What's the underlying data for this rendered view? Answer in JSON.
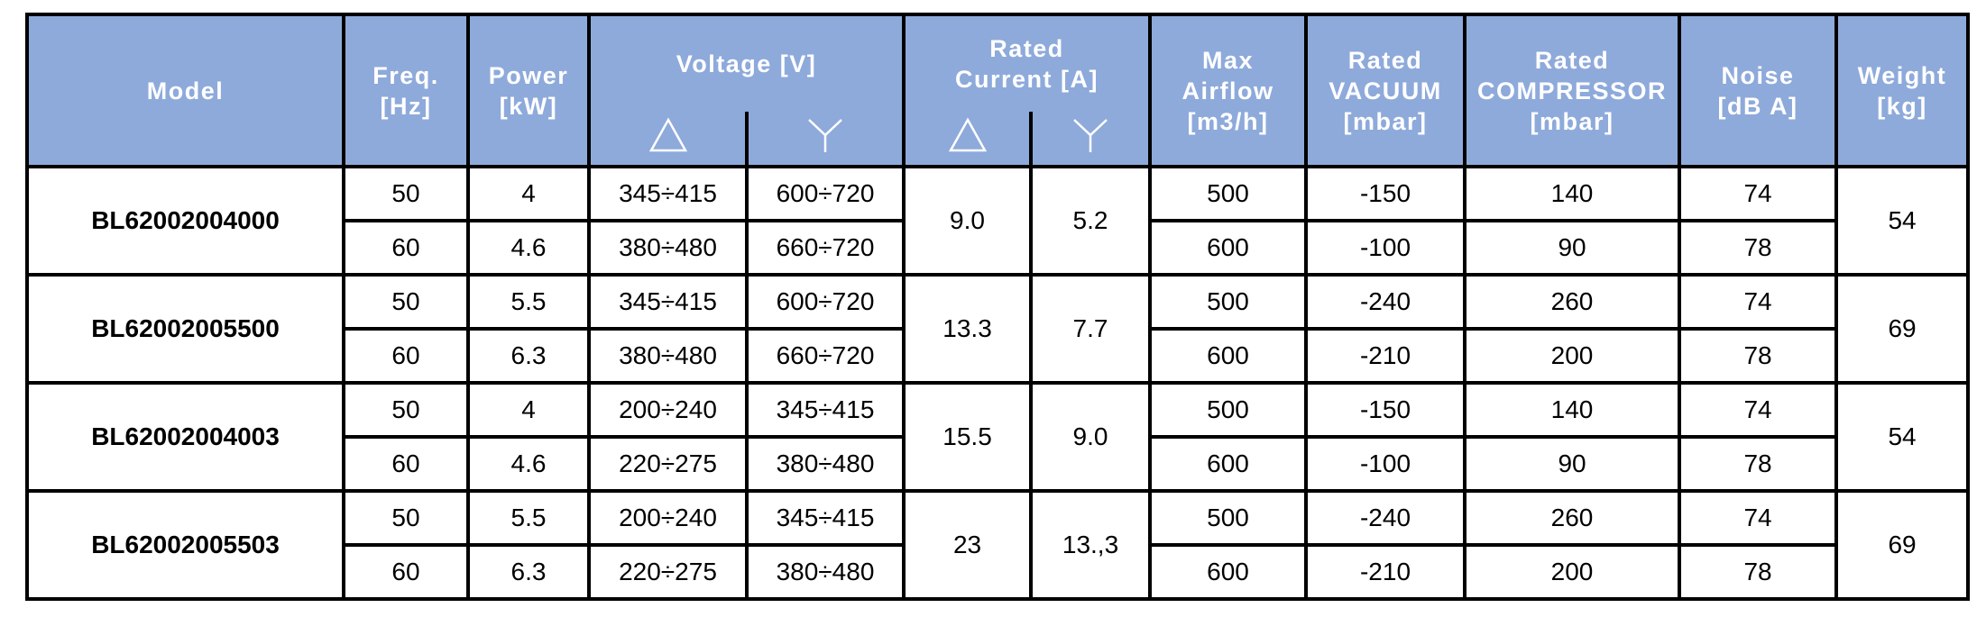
{
  "header": {
    "model": "Model",
    "freq": [
      "Freq.",
      "[Hz]"
    ],
    "power": [
      "Power",
      "[kW]"
    ],
    "voltage": "Voltage [V]",
    "current": [
      "Rated",
      "Current [A]"
    ],
    "airflow": [
      "Max",
      "Airflow",
      "[m3/h]"
    ],
    "vacuum": [
      "Rated",
      "VACUUM",
      "[mbar]"
    ],
    "compressor": [
      "Rated",
      "COMPRESSOR",
      "[mbar]"
    ],
    "noise": [
      "Noise",
      "[dB A]"
    ],
    "weight": [
      "Weight",
      "[kg]"
    ]
  },
  "groups": [
    {
      "model": "BL62002004000",
      "current_delta": "9.0",
      "current_y": "5.2",
      "weight": "54",
      "rows": [
        {
          "freq": "50",
          "power": "4",
          "v_delta": "345÷415",
          "v_y": "600÷720",
          "airflow": "500",
          "vacuum": "-150",
          "compressor": "140",
          "noise": "74"
        },
        {
          "freq": "60",
          "power": "4.6",
          "v_delta": "380÷480",
          "v_y": "660÷720",
          "airflow": "600",
          "vacuum": "-100",
          "compressor": "90",
          "noise": "78"
        }
      ]
    },
    {
      "model": "BL62002005500",
      "current_delta": "13.3",
      "current_y": "7.7",
      "weight": "69",
      "rows": [
        {
          "freq": "50",
          "power": "5.5",
          "v_delta": "345÷415",
          "v_y": "600÷720",
          "airflow": "500",
          "vacuum": "-240",
          "compressor": "260",
          "noise": "74"
        },
        {
          "freq": "60",
          "power": "6.3",
          "v_delta": "380÷480",
          "v_y": "660÷720",
          "airflow": "600",
          "vacuum": "-210",
          "compressor": "200",
          "noise": "78"
        }
      ]
    },
    {
      "model": "BL62002004003",
      "current_delta": "15.5",
      "current_y": "9.0",
      "weight": "54",
      "rows": [
        {
          "freq": "50",
          "power": "4",
          "v_delta": "200÷240",
          "v_y": "345÷415",
          "airflow": "500",
          "vacuum": "-150",
          "compressor": "140",
          "noise": "74"
        },
        {
          "freq": "60",
          "power": "4.6",
          "v_delta": "220÷275",
          "v_y": "380÷480",
          "airflow": "600",
          "vacuum": "-100",
          "compressor": "90",
          "noise": "78"
        }
      ]
    },
    {
      "model": "BL62002005503",
      "current_delta": "23",
      "current_y": "13.,3",
      "weight": "69",
      "rows": [
        {
          "freq": "50",
          "power": "5.5",
          "v_delta": "200÷240",
          "v_y": "345÷415",
          "airflow": "500",
          "vacuum": "-240",
          "compressor": "260",
          "noise": "74"
        },
        {
          "freq": "60",
          "power": "6.3",
          "v_delta": "220÷275",
          "v_y": "380÷480",
          "airflow": "600",
          "vacuum": "-210",
          "compressor": "200",
          "noise": "78"
        }
      ]
    }
  ]
}
